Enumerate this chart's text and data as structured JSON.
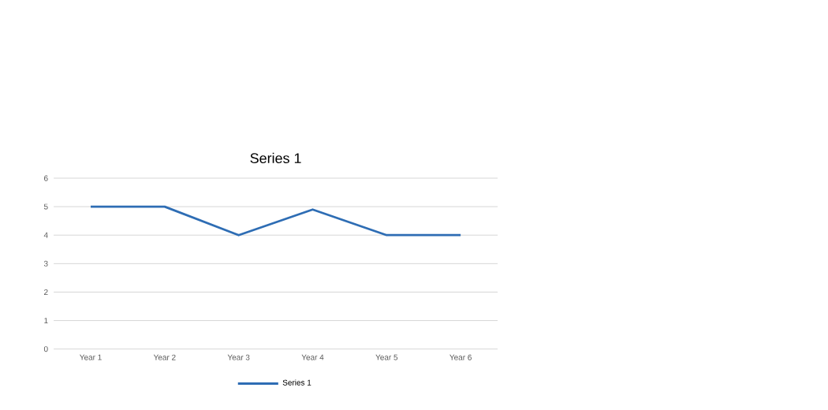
{
  "chart_data": {
    "type": "line",
    "title": "Series 1",
    "categories": [
      "Year 1",
      "Year 2",
      "Year 3",
      "Year 4",
      "Year 5",
      "Year 6"
    ],
    "series": [
      {
        "name": "Series 1",
        "color": "#2e6db4",
        "values": [
          5,
          5,
          4,
          4.9,
          4,
          4
        ]
      }
    ],
    "ylim": [
      0,
      6
    ],
    "yticks": [
      0,
      1,
      2,
      3,
      4,
      5,
      6
    ],
    "grid": "y",
    "legend": "bottom",
    "marker": "none",
    "line_style": "solid"
  }
}
